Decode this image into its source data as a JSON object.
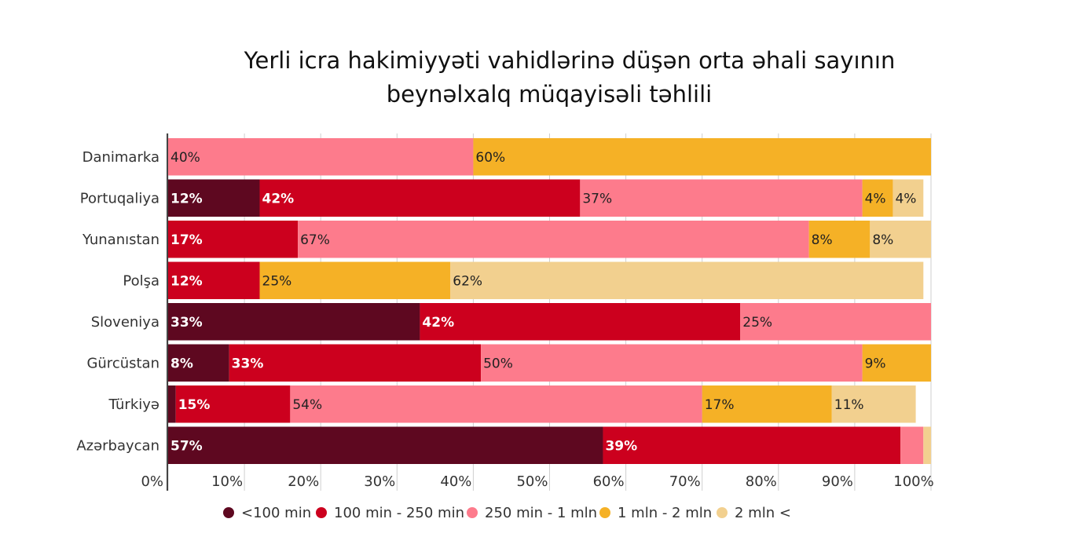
{
  "chart_data": {
    "type": "bar",
    "orientation": "horizontal",
    "stacked": true,
    "title_lines": [
      "Yerli icra hakimiyyəti vahidlərinə düşən orta əhali sayının",
      "beynəlxalq müqayisəli təhlili"
    ],
    "categories": [
      "Danimarka",
      "Portuqaliya",
      "Yunanıstan",
      "Polşa",
      "Sloveniya",
      "Gürcüstan",
      "Türkiyə",
      "Azərbaycan"
    ],
    "series": [
      {
        "name": "<100 min",
        "color": "#5e0820",
        "values": [
          0,
          12,
          0,
          0,
          33,
          8,
          1,
          57
        ],
        "labels": [
          "",
          "12%",
          "",
          "",
          "33%",
          "8%",
          "",
          "57%"
        ]
      },
      {
        "name": "100 min - 250 min",
        "color": "#cc001e",
        "values": [
          0,
          42,
          17,
          12,
          42,
          33,
          15,
          39
        ],
        "labels": [
          "",
          "42%",
          "17%",
          "12%",
          "42%",
          "33%",
          "15%",
          "39%"
        ]
      },
      {
        "name": "250 min - 1 mln",
        "color": "#fd7b8c",
        "values": [
          40,
          37,
          67,
          0,
          25,
          50,
          54,
          3
        ],
        "labels": [
          "40%",
          "37%",
          "67%",
          "",
          "25%",
          "50%",
          "54%",
          ""
        ]
      },
      {
        "name": "1 mln - 2 mln",
        "color": "#f5b126",
        "values": [
          60,
          4,
          8,
          25,
          0,
          9,
          17,
          0
        ],
        "labels": [
          "60%",
          "4%",
          "8%",
          "25%",
          "",
          "9%",
          "17%",
          ""
        ]
      },
      {
        "name": "2 mln <",
        "color": "#f2d08f",
        "values": [
          0,
          4,
          8,
          62,
          0,
          0,
          11,
          1
        ],
        "labels": [
          "",
          "4%",
          "8%",
          "62%",
          "",
          "",
          "11%",
          ""
        ]
      }
    ],
    "xlim": [
      0,
      100
    ],
    "xticks": [
      "0%",
      "10%",
      "20%",
      "30%",
      "40%",
      "50%",
      "60%",
      "70%",
      "80%",
      "90%",
      "100%"
    ],
    "grid": true,
    "legend_position": "bottom"
  }
}
